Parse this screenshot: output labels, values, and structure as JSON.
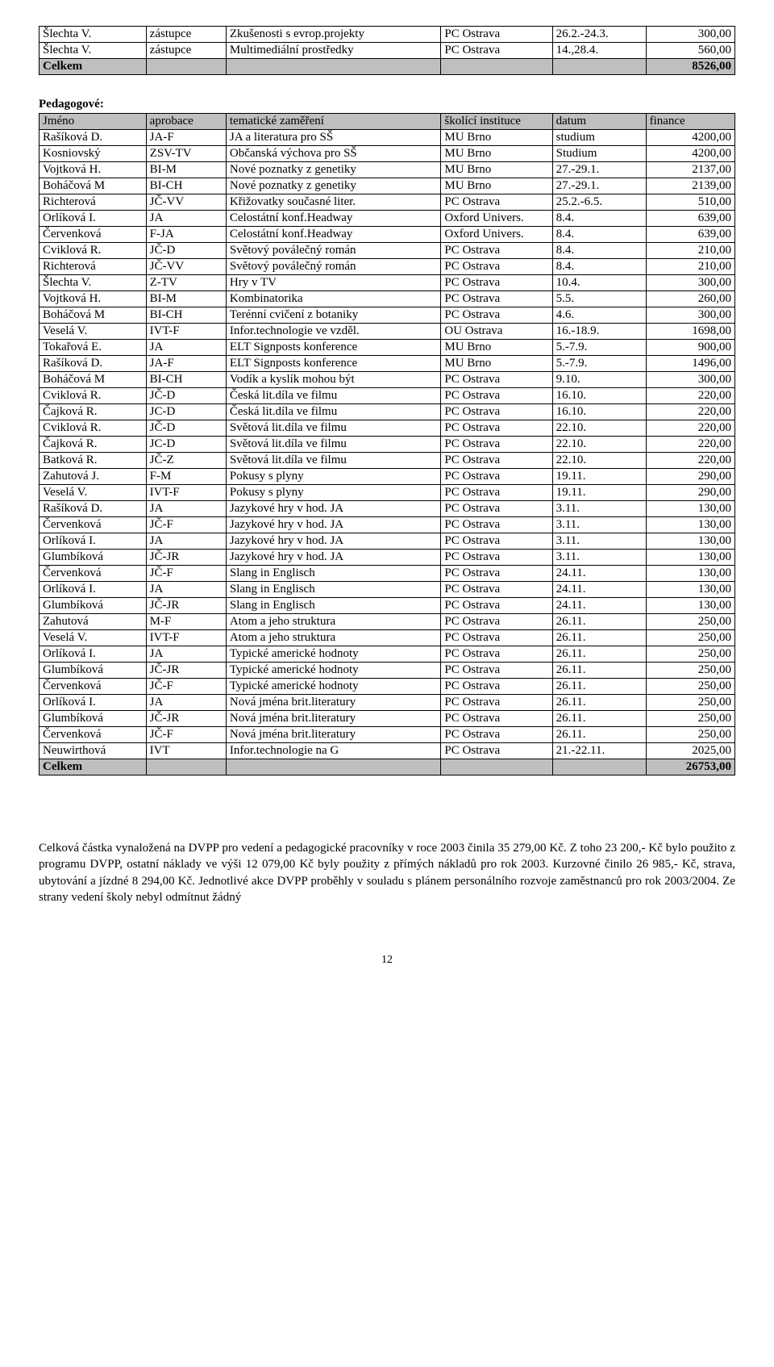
{
  "topTable": {
    "rows": [
      [
        "Šlechta V.",
        "zástupce",
        "Zkušenosti s evrop.projekty",
        "PC Ostrava",
        "26.2.-24.3.",
        "300,00"
      ],
      [
        "Šlechta V.",
        "zástupce",
        "Multimediální prostředky",
        "PC Ostrava",
        "14.,28.4.",
        "560,00"
      ]
    ],
    "totalLabel": "Celkem",
    "totalValue": "8526,00"
  },
  "sectionLabel": "Pedagogové:",
  "mainTable": {
    "headers": [
      "Jméno",
      "aprobace",
      "tematické zaměření",
      "školící instituce",
      "datum",
      "finance"
    ],
    "rows": [
      [
        "Rašíková D.",
        "JA-F",
        "JA a literatura pro SŠ",
        "MU Brno",
        "studium",
        "4200,00"
      ],
      [
        "Kosniovský",
        "ZSV-TV",
        "Občanská výchova pro SŠ",
        "MU Brno",
        "Studium",
        "4200,00"
      ],
      [
        "Vojtková H.",
        "BI-M",
        "Nové poznatky z genetiky",
        "MU Brno",
        "27.-29.1.",
        "2137,00"
      ],
      [
        "Boháčová M",
        "BI-CH",
        "Nové poznatky z genetiky",
        "MU Brno",
        "27.-29.1.",
        "2139,00"
      ],
      [
        "Richterová",
        "JČ-VV",
        "Křižovatky současné liter.",
        "PC Ostrava",
        "25.2.-6.5.",
        "510,00"
      ],
      [
        "Orlíková I.",
        "JA",
        "Celostátní konf.Headway",
        "Oxford Univers.",
        "8.4.",
        "639,00"
      ],
      [
        "Červenková",
        "F-JA",
        "Celostátní konf.Headway",
        "Oxford Univers.",
        "8.4.",
        "639,00"
      ],
      [
        "Cviklová R.",
        "JČ-D",
        "Světový poválečný román",
        "PC Ostrava",
        "8.4.",
        "210,00"
      ],
      [
        "Richterová",
        "JČ-VV",
        "Světový poválečný román",
        "PC Ostrava",
        "8.4.",
        "210,00"
      ],
      [
        "Šlechta V.",
        "Z-TV",
        "Hry v TV",
        "PC Ostrava",
        "10.4.",
        "300,00"
      ],
      [
        "Vojtková H.",
        "BI-M",
        "Kombinatorika",
        "PC Ostrava",
        "5.5.",
        "260,00"
      ],
      [
        "Boháčová M",
        "BI-CH",
        "Terénní cvičení z botaniky",
        "PC Ostrava",
        "4.6.",
        "300,00"
      ],
      [
        "Veselá V.",
        "IVT-F",
        "Infor.technologie ve vzděl.",
        "OU Ostrava",
        "16.-18.9.",
        "1698,00"
      ],
      [
        "Tokařová E.",
        "JA",
        "ELT Signposts konference",
        "MU Brno",
        "5.-7.9.",
        "900,00"
      ],
      [
        "Rašíková D.",
        "JA-F",
        "ELT Signposts konference",
        "MU Brno",
        "5.-7.9.",
        "1496,00"
      ],
      [
        "Boháčová M",
        "BI-CH",
        "Vodík a kyslík mohou být",
        "PC Ostrava",
        "9.10.",
        "300,00"
      ],
      [
        "Cviklová R.",
        "JČ-D",
        "Česká lit.díla ve filmu",
        "PC Ostrava",
        "16.10.",
        "220,00"
      ],
      [
        "Čajková R.",
        "JC-D",
        "Česká lit.díla ve filmu",
        "PC Ostrava",
        "16.10.",
        "220,00"
      ],
      [
        "Cviklová R.",
        "JČ-D",
        "Světová lit.díla ve filmu",
        "PC Ostrava",
        "22.10.",
        "220,00"
      ],
      [
        "Čajková R.",
        "JC-D",
        "Světová lit.díla ve filmu",
        "PC Ostrava",
        "22.10.",
        "220,00"
      ],
      [
        "Batková R.",
        "JČ-Z",
        "Světová lit.díla ve filmu",
        "PC Ostrava",
        "22.10.",
        "220,00"
      ],
      [
        "Zahutová J.",
        "F-M",
        "Pokusy s plyny",
        "PC Ostrava",
        "19.11.",
        "290,00"
      ],
      [
        "Veselá V.",
        "IVT-F",
        "Pokusy s plyny",
        "PC Ostrava",
        "19.11.",
        "290,00"
      ],
      [
        "Rašíková D.",
        "JA",
        "Jazykové hry v hod. JA",
        "PC Ostrava",
        "3.11.",
        "130,00"
      ],
      [
        "Červenková",
        "JČ-F",
        "Jazykové hry v hod. JA",
        "PC Ostrava",
        "3.11.",
        "130,00"
      ],
      [
        "Orlíková I.",
        "JA",
        "Jazykové hry v hod. JA",
        "PC Ostrava",
        "3.11.",
        "130,00"
      ],
      [
        "Glumbíková",
        "JČ-JR",
        "Jazykové hry v hod. JA",
        "PC Ostrava",
        "3.11.",
        "130,00"
      ],
      [
        "Červenková",
        "JČ-F",
        "Slang in Englisch",
        "PC Ostrava",
        "24.11.",
        "130,00"
      ],
      [
        "Orlíková I.",
        "JA",
        "Slang in Englisch",
        "PC Ostrava",
        "24.11.",
        "130,00"
      ],
      [
        "Glumbíková",
        "JČ-JR",
        "Slang in Englisch",
        "PC Ostrava",
        "24.11.",
        "130,00"
      ],
      [
        "Zahutová",
        "M-F",
        "Atom a jeho struktura",
        "PC Ostrava",
        "26.11.",
        "250,00"
      ],
      [
        "Veselá V.",
        "IVT-F",
        "Atom a jeho struktura",
        "PC Ostrava",
        "26.11.",
        "250,00"
      ],
      [
        "Orlíková I.",
        "JA",
        "Typické americké hodnoty",
        "PC Ostrava",
        "26.11.",
        "250,00"
      ],
      [
        "Glumbíková",
        "JČ-JR",
        "Typické americké hodnoty",
        "PC Ostrava",
        "26.11.",
        "250,00"
      ],
      [
        "Červenková",
        "JČ-F",
        "Typické americké hodnoty",
        "PC Ostrava",
        "26.11.",
        "250,00"
      ],
      [
        "Orlíková I.",
        "JA",
        "Nová jména brit.literatury",
        "PC Ostrava",
        "26.11.",
        "250,00"
      ],
      [
        "Glumbíková",
        "JČ-JR",
        "Nová jména brit.literatury",
        "PC Ostrava",
        "26.11.",
        "250,00"
      ],
      [
        "Červenková",
        "JČ-F",
        "Nová jména brit.literatury",
        "PC Ostrava",
        "26.11.",
        "250,00"
      ],
      [
        "Neuwirthová",
        "IVT",
        "Infor.technologie na G",
        "PC Ostrava",
        "21.-22.11.",
        "2025,00"
      ]
    ],
    "totalLabel": "Celkem",
    "totalValue": "26753,00"
  },
  "paragraph": "Celková částka vynaložená na DVPP pro vedení a pedagogické pracovníky v roce 2003 činila 35 279,00 Kč. Z toho 23 200,- Kč bylo použito z programu DVPP, ostatní náklady ve výši 12 079,00 Kč byly použity z přímých nákladů pro rok 2003. Kurzovné činilo 26 985,- Kč, strava, ubytování a jízdné 8 294,00 Kč. Jednotlivé akce DVPP proběhly v souladu s plánem personálního rozvoje zaměstnanců pro rok 2003/2004. Ze strany vedení školy nebyl odmítnut žádný",
  "pageNumber": "12"
}
